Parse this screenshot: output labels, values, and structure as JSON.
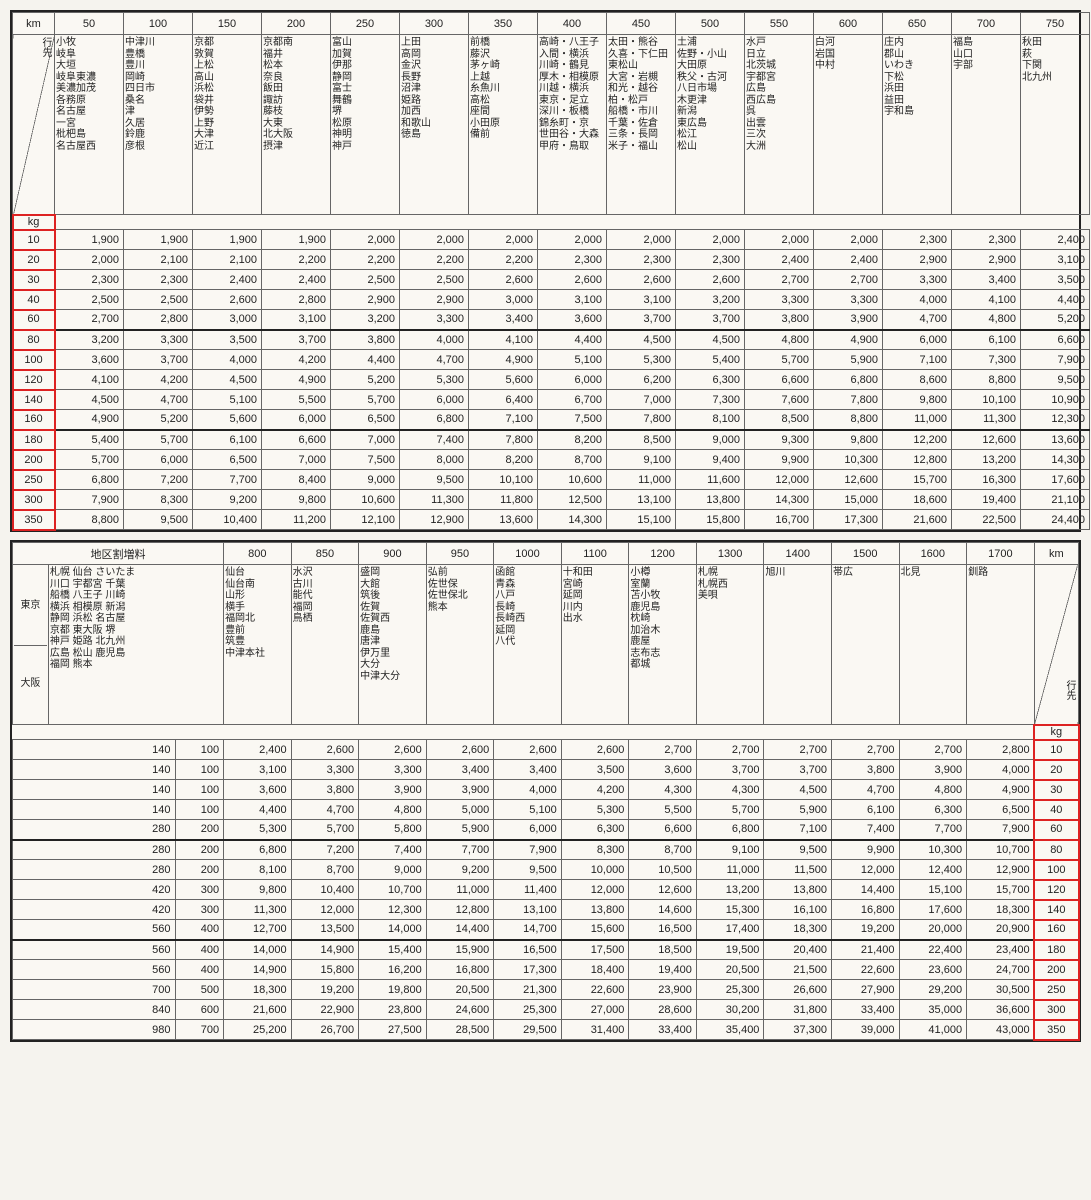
{
  "labels": {
    "km": "km",
    "kg": "kg",
    "dest": "行先",
    "surcharge": "地区割増料",
    "tokyo": "東京",
    "osaka": "大阪"
  },
  "table1": {
    "km_headers": [
      "50",
      "100",
      "150",
      "200",
      "250",
      "300",
      "350",
      "400",
      "450",
      "500",
      "550",
      "600",
      "650",
      "700",
      "750"
    ],
    "destinations": [
      "小牧\n岐阜\n大垣\n岐阜東濃\n美濃加茂\n各務原\n名古屋\n一宮\n枇杷島\n名古屋西",
      "中津川\n豊橋\n豊川\n岡崎\n四日市\n桑名\n津\n久居\n鈴鹿\n彦根",
      "京都\n敦賀\n上松\n高山\n浜松\n袋井\n伊勢\n上野\n大津\n近江",
      "京都南\n福井\n松本\n奈良\n飯田\n諏訪\n藤枝\n大東\n北大阪\n摂津",
      "富山\n加賀\n伊那\n静岡\n富士\n舞鶴\n堺\n松原\n神明\n神戸",
      "上田\n高岡\n金沢\n長野\n沼津\n姫路\n加西\n和歌山\n徳島",
      "前橋\n藤沢\n茅ヶ崎\n上越\n糸魚川\n高松\n座間\n小田原\n備前",
      "高崎・八王子\n入間・横浜\n川崎・鶴見\n厚木・相模原\n川越・横浜\n東京・足立\n深川・板橋\n錦糸町・京\n世田谷・大森\n甲府・鳥取",
      "太田・熊谷\n久喜・下仁田\n東松山\n大宮・岩槻\n和光・越谷\n柏・松戸\n船橋・市川\n千葉・佐倉\n三条・長岡\n米子・福山",
      "土浦\n佐野・小山\n大田原\n秩父・古河\n八日市場\n木更津\n新潟\n東広島\n松江\n松山",
      "水戸\n日立\n北茨城\n宇都宮\n広島\n西広島\n呉\n出雲\n三次\n大洲",
      "白河\n岩国\n中村",
      "庄内\n郡山\nいわき\n下松\n浜田\n益田\n宇和島",
      "福島\n山口\n宇部",
      "秋田\n萩\n下関\n北九州"
    ],
    "kg_labels": [
      "10",
      "20",
      "30",
      "40",
      "60",
      "80",
      "100",
      "120",
      "140",
      "160",
      "180",
      "200",
      "250",
      "300",
      "350"
    ],
    "rows": [
      [
        "1,900",
        "1,900",
        "1,900",
        "1,900",
        "2,000",
        "2,000",
        "2,000",
        "2,000",
        "2,000",
        "2,000",
        "2,000",
        "2,000",
        "2,300",
        "2,300",
        "2,400"
      ],
      [
        "2,000",
        "2,100",
        "2,100",
        "2,200",
        "2,200",
        "2,200",
        "2,200",
        "2,300",
        "2,300",
        "2,300",
        "2,400",
        "2,400",
        "2,900",
        "2,900",
        "3,100"
      ],
      [
        "2,300",
        "2,300",
        "2,400",
        "2,400",
        "2,500",
        "2,500",
        "2,600",
        "2,600",
        "2,600",
        "2,600",
        "2,700",
        "2,700",
        "3,300",
        "3,400",
        "3,500"
      ],
      [
        "2,500",
        "2,500",
        "2,600",
        "2,800",
        "2,900",
        "2,900",
        "3,000",
        "3,100",
        "3,100",
        "3,200",
        "3,300",
        "3,300",
        "4,000",
        "4,100",
        "4,400"
      ],
      [
        "2,700",
        "2,800",
        "3,000",
        "3,100",
        "3,200",
        "3,300",
        "3,400",
        "3,600",
        "3,700",
        "3,700",
        "3,800",
        "3,900",
        "4,700",
        "4,800",
        "5,200"
      ],
      [
        "3,200",
        "3,300",
        "3,500",
        "3,700",
        "3,800",
        "4,000",
        "4,100",
        "4,400",
        "4,500",
        "4,500",
        "4,800",
        "4,900",
        "6,000",
        "6,100",
        "6,600"
      ],
      [
        "3,600",
        "3,700",
        "4,000",
        "4,200",
        "4,400",
        "4,700",
        "4,900",
        "5,100",
        "5,300",
        "5,400",
        "5,700",
        "5,900",
        "7,100",
        "7,300",
        "7,900"
      ],
      [
        "4,100",
        "4,200",
        "4,500",
        "4,900",
        "5,200",
        "5,300",
        "5,600",
        "6,000",
        "6,200",
        "6,300",
        "6,600",
        "6,800",
        "8,600",
        "8,800",
        "9,500"
      ],
      [
        "4,500",
        "4,700",
        "5,100",
        "5,500",
        "5,700",
        "6,000",
        "6,400",
        "6,700",
        "7,000",
        "7,300",
        "7,600",
        "7,800",
        "9,800",
        "10,100",
        "10,900"
      ],
      [
        "4,900",
        "5,200",
        "5,600",
        "6,000",
        "6,500",
        "6,800",
        "7,100",
        "7,500",
        "7,800",
        "8,100",
        "8,500",
        "8,800",
        "11,000",
        "11,300",
        "12,300"
      ],
      [
        "5,400",
        "5,700",
        "6,100",
        "6,600",
        "7,000",
        "7,400",
        "7,800",
        "8,200",
        "8,500",
        "9,000",
        "9,300",
        "9,800",
        "12,200",
        "12,600",
        "13,600"
      ],
      [
        "5,700",
        "6,000",
        "6,500",
        "7,000",
        "7,500",
        "8,000",
        "8,200",
        "8,700",
        "9,100",
        "9,400",
        "9,900",
        "10,300",
        "12,800",
        "13,200",
        "14,300"
      ],
      [
        "6,800",
        "7,200",
        "7,700",
        "8,400",
        "9,000",
        "9,500",
        "10,100",
        "10,600",
        "11,000",
        "11,600",
        "12,000",
        "12,600",
        "15,700",
        "16,300",
        "17,600"
      ],
      [
        "7,900",
        "8,300",
        "9,200",
        "9,800",
        "10,600",
        "11,300",
        "11,800",
        "12,500",
        "13,100",
        "13,800",
        "14,300",
        "15,000",
        "18,600",
        "19,400",
        "21,100"
      ],
      [
        "8,800",
        "9,500",
        "10,400",
        "11,200",
        "12,100",
        "12,900",
        "13,600",
        "14,300",
        "15,100",
        "15,800",
        "16,700",
        "17,300",
        "21,600",
        "22,500",
        "24,400"
      ]
    ],
    "thick_rows": [
      5,
      10
    ]
  },
  "table2": {
    "km_headers": [
      "800",
      "850",
      "900",
      "950",
      "1000",
      "1100",
      "1200",
      "1300",
      "1400",
      "1500",
      "1600",
      "1700"
    ],
    "surcharge_cols_tokyo": "札幌 仙台 さいたま\n川口 宇都宮 千葉\n船橋 八王子 川崎\n横浜 相模原 新潟\n静岡 浜松 名古屋\n京都 東大阪 堺\n神戸 姫路 北九州\n広島 松山 鹿児島\n福岡 熊本",
    "surcharge_cols_osaka": "",
    "destinations": [
      "仙台\n仙台南\n山形\n横手\n福岡北\n豊前\n筑豊\n中津本社",
      "水沢\n古川\n能代\n福岡\n鳥栖",
      "盛岡\n大館\n筑後\n佐賀\n佐賀西\n鹿島\n唐津\n伊万里\n大分\n中津大分",
      "弘前\n佐世保\n佐世保北\n熊本",
      "函館\n青森\n八戸\n長崎\n長崎西\n延岡\n八代",
      "十和田\n宮崎\n延岡\n川内\n出水",
      "小樽\n室蘭\n苫小牧\n鹿児島\n枕崎\n加治木\n鹿屋\n志布志\n都城",
      "札幌\n札幌西\n美唄",
      "旭川",
      "帯広",
      "北見",
      "釧路"
    ],
    "kg_labels": [
      "10",
      "20",
      "30",
      "40",
      "60",
      "80",
      "100",
      "120",
      "140",
      "160",
      "180",
      "200",
      "250",
      "300",
      "350"
    ],
    "surcharge_vals": [
      [
        "140",
        "100"
      ],
      [
        "140",
        "100"
      ],
      [
        "140",
        "100"
      ],
      [
        "140",
        "100"
      ],
      [
        "280",
        "200"
      ],
      [
        "280",
        "200"
      ],
      [
        "280",
        "200"
      ],
      [
        "420",
        "300"
      ],
      [
        "420",
        "300"
      ],
      [
        "560",
        "400"
      ],
      [
        "560",
        "400"
      ],
      [
        "560",
        "400"
      ],
      [
        "700",
        "500"
      ],
      [
        "840",
        "600"
      ],
      [
        "980",
        "700"
      ]
    ],
    "rows": [
      [
        "2,400",
        "2,600",
        "2,600",
        "2,600",
        "2,600",
        "2,600",
        "2,700",
        "2,700",
        "2,700",
        "2,700",
        "2,700",
        "2,800"
      ],
      [
        "3,100",
        "3,300",
        "3,300",
        "3,400",
        "3,400",
        "3,500",
        "3,600",
        "3,700",
        "3,700",
        "3,800",
        "3,900",
        "4,000"
      ],
      [
        "3,600",
        "3,800",
        "3,900",
        "3,900",
        "4,000",
        "4,200",
        "4,300",
        "4,300",
        "4,500",
        "4,700",
        "4,800",
        "4,900"
      ],
      [
        "4,400",
        "4,700",
        "4,800",
        "5,000",
        "5,100",
        "5,300",
        "5,500",
        "5,700",
        "5,900",
        "6,100",
        "6,300",
        "6,500"
      ],
      [
        "5,300",
        "5,700",
        "5,800",
        "5,900",
        "6,000",
        "6,300",
        "6,600",
        "6,800",
        "7,100",
        "7,400",
        "7,700",
        "7,900"
      ],
      [
        "6,800",
        "7,200",
        "7,400",
        "7,700",
        "7,900",
        "8,300",
        "8,700",
        "9,100",
        "9,500",
        "9,900",
        "10,300",
        "10,700"
      ],
      [
        "8,100",
        "8,700",
        "9,000",
        "9,200",
        "9,500",
        "10,000",
        "10,500",
        "11,000",
        "11,500",
        "12,000",
        "12,400",
        "12,900"
      ],
      [
        "9,800",
        "10,400",
        "10,700",
        "11,000",
        "11,400",
        "12,000",
        "12,600",
        "13,200",
        "13,800",
        "14,400",
        "15,100",
        "15,700"
      ],
      [
        "11,300",
        "12,000",
        "12,300",
        "12,800",
        "13,100",
        "13,800",
        "14,600",
        "15,300",
        "16,100",
        "16,800",
        "17,600",
        "18,300"
      ],
      [
        "12,700",
        "13,500",
        "14,000",
        "14,400",
        "14,700",
        "15,600",
        "16,500",
        "17,400",
        "18,300",
        "19,200",
        "20,000",
        "20,900"
      ],
      [
        "14,000",
        "14,900",
        "15,400",
        "15,900",
        "16,500",
        "17,500",
        "18,500",
        "19,500",
        "20,400",
        "21,400",
        "22,400",
        "23,400"
      ],
      [
        "14,900",
        "15,800",
        "16,200",
        "16,800",
        "17,300",
        "18,400",
        "19,400",
        "20,500",
        "21,500",
        "22,600",
        "23,600",
        "24,700"
      ],
      [
        "18,300",
        "19,200",
        "19,800",
        "20,500",
        "21,300",
        "22,600",
        "23,900",
        "25,300",
        "26,600",
        "27,900",
        "29,200",
        "30,500"
      ],
      [
        "21,600",
        "22,900",
        "23,800",
        "24,600",
        "25,300",
        "27,000",
        "28,600",
        "30,200",
        "31,800",
        "33,400",
        "35,000",
        "36,600"
      ],
      [
        "25,200",
        "26,700",
        "27,500",
        "28,500",
        "29,500",
        "31,400",
        "33,400",
        "35,400",
        "37,300",
        "39,000",
        "41,000",
        "43,000"
      ]
    ],
    "thick_rows": [
      5,
      10
    ]
  }
}
